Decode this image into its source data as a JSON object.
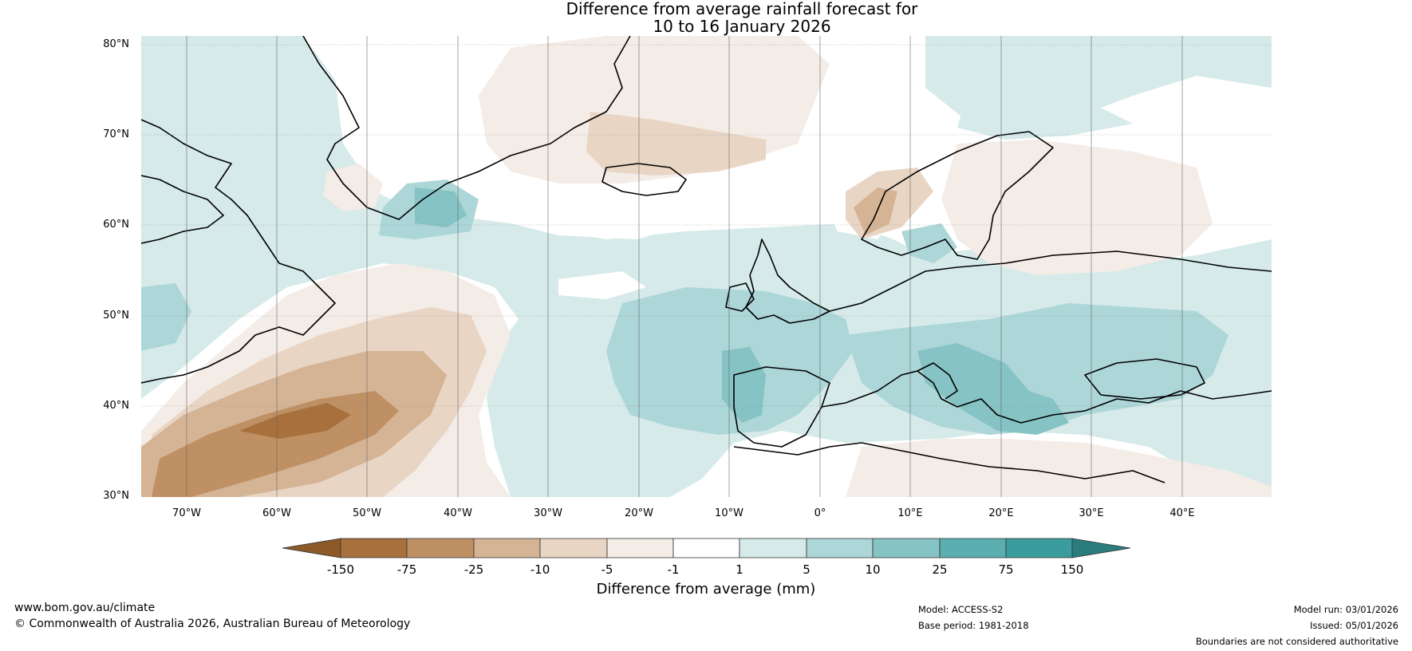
{
  "title": {
    "line1": "Difference from average rainfall forecast for",
    "line2": "10 to 16 January 2026"
  },
  "map": {
    "lat_labels": [
      "80°N",
      "70°N",
      "60°N",
      "50°N",
      "40°N",
      "30°N"
    ],
    "lon_labels": [
      "70°W",
      "60°W",
      "50°W",
      "40°W",
      "30°W",
      "20°W",
      "10°W",
      "0°",
      "10°E",
      "20°E",
      "30°E",
      "40°E"
    ]
  },
  "colorbar": {
    "title": "Difference from average (mm)",
    "ticks": [
      "-150",
      "-75",
      "-25",
      "-10",
      "-5",
      "-1",
      "1",
      "5",
      "10",
      "25",
      "75",
      "150"
    ],
    "colors": {
      "below_min": "#8c5a28",
      "c_m150_m75": "#a8703c",
      "c_m75_m25": "#bf9064",
      "c_m25_m10": "#d5b495",
      "c_m10_m5": "#e8d5c4",
      "c_m5_m1": "#f4ece6",
      "c_m1_1": "#ffffff",
      "c_1_5": "#d6eaea",
      "c_5_10": "#acd6d8",
      "c_10_25": "#86c3c4",
      "c_25_75": "#5aaeb0",
      "c_75_150": "#3b9c9d",
      "above_max": "#2b7d7d"
    }
  },
  "footer": {
    "website": "www.bom.gov.au/climate",
    "copyright": "© Commonwealth of Australia 2026, Australian Bureau of Meteorology",
    "model": "Model: ACCESS-S2",
    "base_period": "Base period: 1981-2018",
    "model_run": "Model run: 03/01/2026",
    "issued": "Issued: 05/01/2026",
    "disclaimer": "Boundaries are not considered authoritative"
  }
}
